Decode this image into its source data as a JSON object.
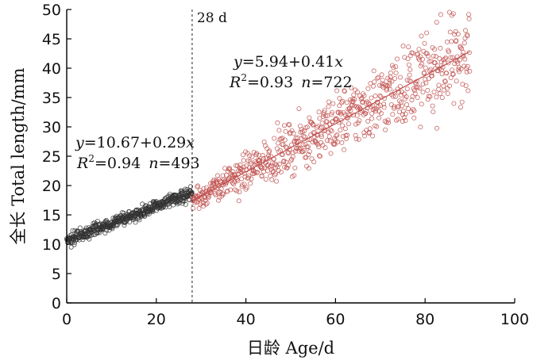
{
  "chart_data": {
    "type": "scatter",
    "title": "",
    "xlabel": "日龄 Age/d",
    "ylabel": "全长 Total length/mm",
    "xlim": [
      0,
      100
    ],
    "ylim": [
      0,
      50
    ],
    "xticks": [
      0,
      20,
      40,
      60,
      80,
      100
    ],
    "yticks": [
      0,
      5,
      10,
      15,
      20,
      25,
      30,
      35,
      40,
      45,
      50
    ],
    "grid": false,
    "legend": "none",
    "vertical_marker": {
      "x": 28,
      "label": "28 d",
      "style": "dashed"
    },
    "series": [
      {
        "color": "#333333",
        "x_range": [
          0,
          28
        ],
        "n": 493,
        "fit": {
          "intercept": 10.67,
          "slope": 0.29,
          "r2": 0.94
        },
        "annotation": {
          "eq_y": "y",
          "eq_body": "=10.67+0.29",
          "eq_x": "x",
          "r2_label": "R",
          "r2_sup": "2",
          "r2_value": "=0.94",
          "n_label": "n",
          "n_value": "=493"
        }
      },
      {
        "color": "#c0504d",
        "x_range": [
          28,
          90
        ],
        "n": 722,
        "fit": {
          "intercept": 5.94,
          "slope": 0.41,
          "r2": 0.93
        },
        "annotation": {
          "eq_y": "y",
          "eq_body": "=5.94+0.41",
          "eq_x": "x",
          "r2_label": "R",
          "r2_sup": "2",
          "r2_value": "=0.93",
          "n_label": "n",
          "n_value": "=722"
        }
      }
    ]
  }
}
